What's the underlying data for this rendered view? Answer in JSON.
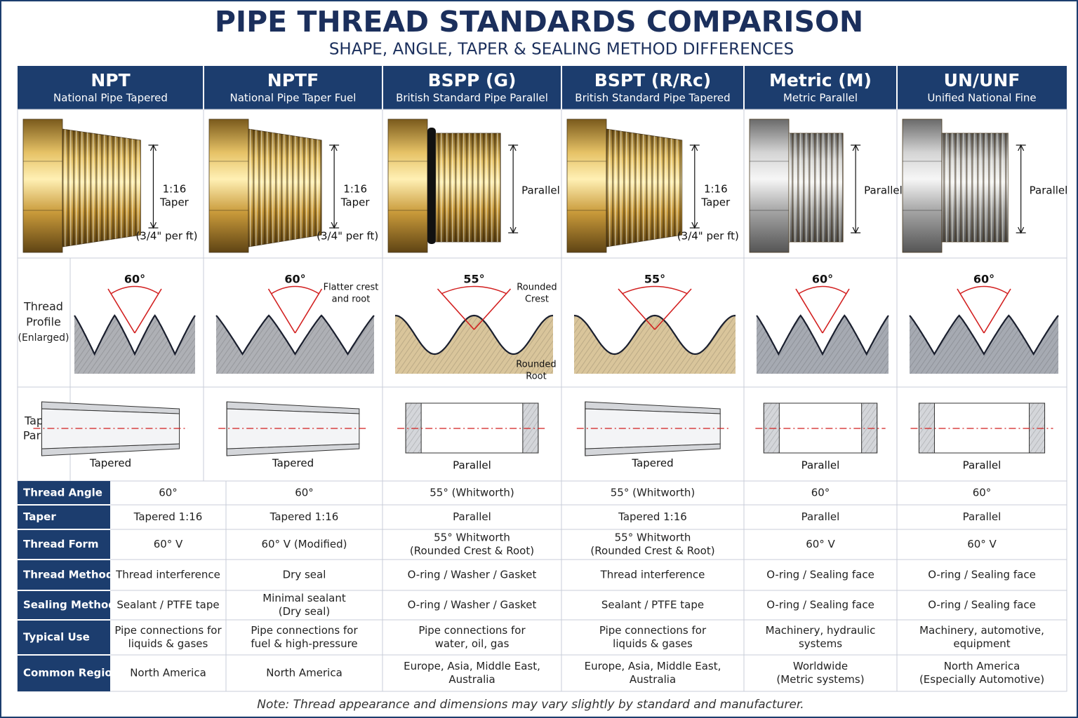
{
  "header": {
    "title": "PIPE THREAD STANDARDS COMPARISON",
    "subtitle": "SHAPE, ANGLE, TAPER & SEALING METHOD DIFFERENCES"
  },
  "row_labels": {
    "profile": [
      "Thread",
      "Profile",
      "(Enlarged)"
    ],
    "taper": [
      "Taper /",
      "Parallel"
    ]
  },
  "columns": [
    {
      "name": "NPT",
      "full_name": "National Pipe Tapered",
      "image_label": [
        "1:16",
        "Taper"
      ],
      "image_note": "(3/4\" per ft)",
      "angle": "60°",
      "diagram_label": "Tapered"
    },
    {
      "name": "NPTF",
      "full_name": "National Pipe Taper Fuel",
      "image_label": [
        "1:16",
        "Taper"
      ],
      "image_note": "(3/4\" per ft)",
      "angle": "60°",
      "profile_top_note": [
        "Flatter crest",
        "and root"
      ],
      "diagram_label": "Tapered"
    },
    {
      "name": "BSPP (G)",
      "full_name": "British Standard Pipe Parallel",
      "image_label": [
        "Parallel"
      ],
      "angle": "55°",
      "profile_top_note": [
        "Rounded",
        "Crest"
      ],
      "profile_bottom_note": [
        "Rounded",
        "Root"
      ],
      "diagram_label": "Parallel"
    },
    {
      "name": "BSPT (R/Rc)",
      "full_name": "British Standard Pipe Tapered",
      "image_label": [
        "1:16",
        "Taper"
      ],
      "image_note": "(3/4\" per ft)",
      "angle": "55°",
      "diagram_label": "Tapered"
    },
    {
      "name": "Metric (M)",
      "full_name": "Metric Parallel",
      "image_label": [
        "Parallel"
      ],
      "angle": "60°",
      "diagram_label": "Parallel"
    },
    {
      "name": "UN/UNF",
      "full_name": "Unified National Fine",
      "image_label": [
        "Parallel"
      ],
      "angle": "60°",
      "diagram_label": "Parallel"
    }
  ],
  "table": {
    "rows": [
      {
        "label": "Thread Angle",
        "cells": [
          [
            "60°"
          ],
          [
            "60°"
          ],
          [
            "55° (Whitworth)"
          ],
          [
            "55° (Whitworth)"
          ],
          [
            "60°"
          ],
          [
            "60°"
          ]
        ]
      },
      {
        "label": "Taper",
        "cells": [
          [
            "Tapered 1:16"
          ],
          [
            "Tapered 1:16"
          ],
          [
            "Parallel"
          ],
          [
            "Tapered 1:16"
          ],
          [
            "Parallel"
          ],
          [
            "Parallel"
          ]
        ]
      },
      {
        "label": "Thread Form",
        "cells": [
          [
            "60° V"
          ],
          [
            "60° V (Modified)"
          ],
          [
            "55° Whitworth",
            "(Rounded Crest & Root)"
          ],
          [
            "55° Whitworth",
            "(Rounded Crest & Root)"
          ],
          [
            "60° V"
          ],
          [
            "60° V"
          ]
        ]
      },
      {
        "label": "Thread Method",
        "cells": [
          [
            "Thread interference"
          ],
          [
            "Dry seal"
          ],
          [
            "O-ring / Washer / Gasket"
          ],
          [
            "Thread interference"
          ],
          [
            "O-ring / Sealing face"
          ],
          [
            "O-ring / Sealing face"
          ]
        ]
      },
      {
        "label": "Sealing Method",
        "cells": [
          [
            "Sealant / PTFE tape"
          ],
          [
            "Minimal sealant",
            "(Dry seal)"
          ],
          [
            "O-ring / Washer / Gasket"
          ],
          [
            "Sealant / PTFE tape"
          ],
          [
            "O-ring / Sealing face"
          ],
          [
            "O-ring / Sealing face"
          ]
        ]
      },
      {
        "label": "Typical Use",
        "cells": [
          [
            "Pipe connections for",
            "liquids & gases"
          ],
          [
            "Pipe connections for",
            "fuel & high-pressure"
          ],
          [
            "Pipe connections for",
            "water, oil, gas"
          ],
          [
            "Pipe connections for",
            "liquids & gases"
          ],
          [
            "Machinery, hydraulic",
            "systems"
          ],
          [
            "Machinery, automotive,",
            "equipment"
          ]
        ]
      },
      {
        "label": "Common Regions",
        "cells": [
          [
            "North America"
          ],
          [
            "North America"
          ],
          [
            "Europe, Asia, Middle East,",
            "Australia"
          ],
          [
            "Europe, Asia, Middle East,",
            "Australia"
          ],
          [
            "Worldwide",
            "(Metric systems)"
          ],
          [
            "North America",
            "(Especially Automotive)"
          ]
        ]
      }
    ]
  },
  "note": "Note: Thread appearance and dimensions may vary slightly by standard and manufacturer."
}
